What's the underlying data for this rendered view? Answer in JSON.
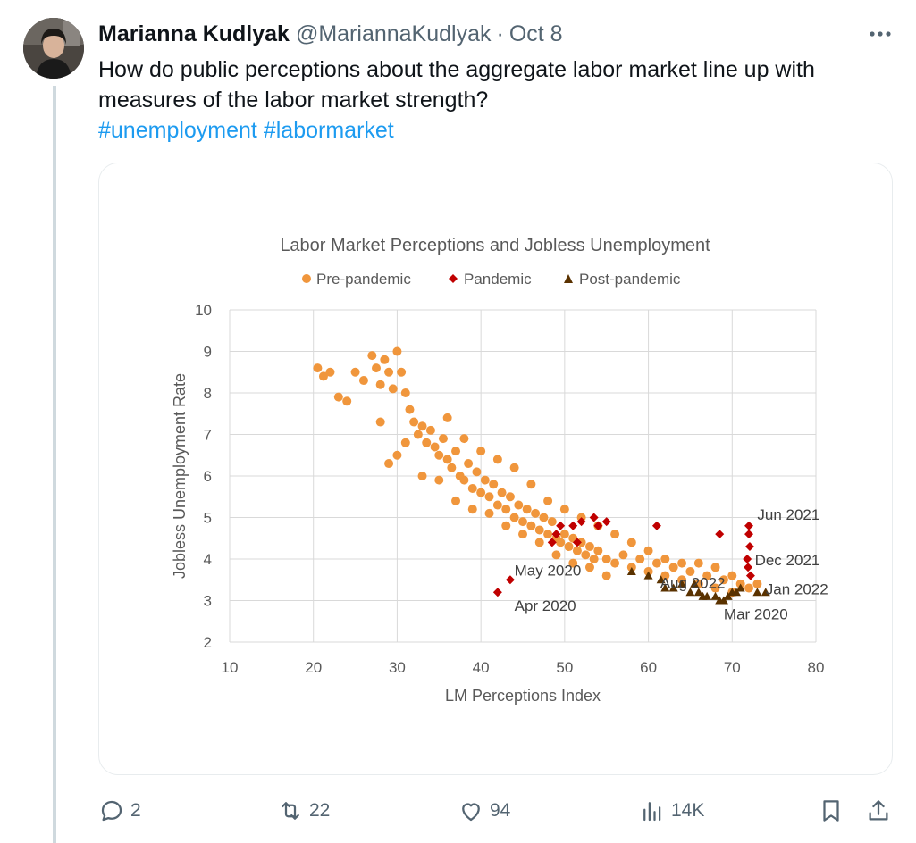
{
  "tweet": {
    "display_name": "Marianna Kudlyak",
    "handle": "@MariannaKudlyak",
    "separator": "·",
    "date": "Oct 8",
    "text_line1": "How do public perceptions about the aggregate labor market line up with",
    "text_line2": "measures of the labor market strength?",
    "hashtags": [
      "#unemployment",
      "#labormarket"
    ],
    "more_icon": "ellipsis-icon"
  },
  "actions": {
    "replies": "2",
    "retweets": "22",
    "likes": "94",
    "views": "14K",
    "icons": [
      "reply-icon",
      "retweet-icon",
      "like-icon",
      "views-icon",
      "bookmark-icon",
      "share-icon"
    ]
  },
  "colors": {
    "hashtag": "#1d9bf0",
    "secondary_text": "#536471",
    "pre_pandemic": "#f0963c",
    "pandemic": "#c00000",
    "post_pandemic": "#5a3200"
  },
  "chart_data": {
    "type": "scatter",
    "title": "Labor Market Perceptions and Jobless Unemployment",
    "xlabel": "LM Perceptions Index",
    "ylabel": "Jobless Unemployment  Rate",
    "xlim": [
      10,
      80
    ],
    "ylim": [
      2,
      10
    ],
    "xticks": [
      10,
      20,
      30,
      40,
      50,
      60,
      70,
      80
    ],
    "yticks": [
      2,
      3,
      4,
      5,
      6,
      7,
      8,
      9,
      10
    ],
    "grid": true,
    "legend_position": "top",
    "series": [
      {
        "name": "Pre-pandemic",
        "marker": "circle",
        "points": [
          [
            20.5,
            8.6
          ],
          [
            21.2,
            8.4
          ],
          [
            22,
            8.5
          ],
          [
            23,
            7.9
          ],
          [
            24,
            7.8
          ],
          [
            25,
            8.5
          ],
          [
            26,
            8.3
          ],
          [
            27,
            8.9
          ],
          [
            27.5,
            8.6
          ],
          [
            28,
            8.2
          ],
          [
            28.5,
            8.8
          ],
          [
            29,
            8.5
          ],
          [
            29.5,
            8.1
          ],
          [
            30,
            9.0
          ],
          [
            30.5,
            8.5
          ],
          [
            31,
            8.0
          ],
          [
            31.5,
            7.6
          ],
          [
            32,
            7.3
          ],
          [
            32.5,
            7.0
          ],
          [
            33,
            7.2
          ],
          [
            33.5,
            6.8
          ],
          [
            34,
            7.1
          ],
          [
            34.5,
            6.7
          ],
          [
            35,
            6.5
          ],
          [
            35.5,
            6.9
          ],
          [
            36,
            6.4
          ],
          [
            36.5,
            6.2
          ],
          [
            37,
            6.6
          ],
          [
            37.5,
            6.0
          ],
          [
            38,
            5.9
          ],
          [
            38.5,
            6.3
          ],
          [
            39,
            5.7
          ],
          [
            39.5,
            6.1
          ],
          [
            40,
            5.6
          ],
          [
            40.5,
            5.9
          ],
          [
            41,
            5.5
          ],
          [
            41.5,
            5.8
          ],
          [
            42,
            5.3
          ],
          [
            42.5,
            5.6
          ],
          [
            43,
            5.2
          ],
          [
            43.5,
            5.5
          ],
          [
            44,
            5.0
          ],
          [
            44.5,
            5.3
          ],
          [
            45,
            4.9
          ],
          [
            45.5,
            5.2
          ],
          [
            46,
            4.8
          ],
          [
            46.5,
            5.1
          ],
          [
            47,
            4.7
          ],
          [
            47.5,
            5.0
          ],
          [
            48,
            4.6
          ],
          [
            48.5,
            4.9
          ],
          [
            49,
            4.5
          ],
          [
            49.5,
            4.4
          ],
          [
            50,
            4.6
          ],
          [
            50.5,
            4.3
          ],
          [
            51,
            4.5
          ],
          [
            51.5,
            4.2
          ],
          [
            52,
            4.4
          ],
          [
            52.5,
            4.1
          ],
          [
            53,
            4.3
          ],
          [
            53.5,
            4.0
          ],
          [
            54,
            4.2
          ],
          [
            55,
            4.0
          ],
          [
            56,
            3.9
          ],
          [
            57,
            4.1
          ],
          [
            58,
            3.8
          ],
          [
            59,
            4.0
          ],
          [
            60,
            3.7
          ],
          [
            61,
            3.9
          ],
          [
            62,
            3.6
          ],
          [
            63,
            3.8
          ],
          [
            64,
            3.5
          ],
          [
            65,
            3.7
          ],
          [
            66,
            3.4
          ],
          [
            67,
            3.6
          ],
          [
            68,
            3.3
          ],
          [
            69,
            3.5
          ],
          [
            70,
            3.2
          ],
          [
            71,
            3.4
          ],
          [
            72,
            3.3
          ],
          [
            73,
            3.4
          ],
          [
            28,
            7.3
          ],
          [
            29,
            6.3
          ],
          [
            30,
            6.5
          ],
          [
            31,
            6.8
          ],
          [
            33,
            6.0
          ],
          [
            35,
            5.9
          ],
          [
            37,
            5.4
          ],
          [
            39,
            5.2
          ],
          [
            41,
            5.1
          ],
          [
            43,
            4.8
          ],
          [
            45,
            4.6
          ],
          [
            47,
            4.4
          ],
          [
            49,
            4.1
          ],
          [
            51,
            3.9
          ],
          [
            53,
            3.8
          ],
          [
            55,
            3.6
          ],
          [
            36,
            7.4
          ],
          [
            38,
            6.9
          ],
          [
            40,
            6.6
          ],
          [
            42,
            6.4
          ],
          [
            44,
            6.2
          ],
          [
            46,
            5.8
          ],
          [
            48,
            5.4
          ],
          [
            50,
            5.2
          ],
          [
            52,
            5.0
          ],
          [
            54,
            4.8
          ],
          [
            56,
            4.6
          ],
          [
            58,
            4.4
          ],
          [
            60,
            4.2
          ],
          [
            62,
            4.0
          ],
          [
            64,
            3.9
          ],
          [
            66,
            3.9
          ],
          [
            68,
            3.8
          ],
          [
            70,
            3.6
          ]
        ]
      },
      {
        "name": "Pandemic",
        "marker": "diamond",
        "points": [
          [
            42,
            3.2
          ],
          [
            43.5,
            3.5
          ],
          [
            48.5,
            4.4
          ],
          [
            49,
            4.6
          ],
          [
            49.5,
            4.8
          ],
          [
            51,
            4.8
          ],
          [
            51.5,
            4.4
          ],
          [
            52,
            4.9
          ],
          [
            53.5,
            5.0
          ],
          [
            54,
            4.8
          ],
          [
            55,
            4.9
          ],
          [
            61,
            4.8
          ],
          [
            68.5,
            4.6
          ],
          [
            72,
            4.8
          ],
          [
            72,
            4.6
          ],
          [
            72.1,
            4.3
          ],
          [
            71.8,
            4.0
          ],
          [
            71.9,
            3.8
          ],
          [
            72.2,
            3.6
          ]
        ]
      },
      {
        "name": "Post-pandemic",
        "marker": "triangle",
        "points": [
          [
            58,
            3.7
          ],
          [
            60,
            3.6
          ],
          [
            61.5,
            3.5
          ],
          [
            62,
            3.3
          ],
          [
            63,
            3.3
          ],
          [
            64,
            3.4
          ],
          [
            65,
            3.2
          ],
          [
            65.5,
            3.4
          ],
          [
            66,
            3.2
          ],
          [
            66.5,
            3.1
          ],
          [
            67,
            3.1
          ],
          [
            68,
            3.1
          ],
          [
            68.5,
            3.0
          ],
          [
            69,
            3.0
          ],
          [
            69.5,
            3.1
          ],
          [
            70,
            3.2
          ],
          [
            70.5,
            3.2
          ],
          [
            71,
            3.3
          ],
          [
            73,
            3.2
          ],
          [
            74,
            3.2
          ]
        ]
      }
    ],
    "annotations": [
      {
        "text": "Jun 2021",
        "x": 73,
        "y": 4.95
      },
      {
        "text": "Dec 2021",
        "x": 72.7,
        "y": 3.85
      },
      {
        "text": "Jan 2022",
        "x": 74,
        "y": 3.15
      },
      {
        "text": "Mar 2020",
        "x": 69,
        "y": 2.55
      },
      {
        "text": "Aug 2022",
        "x": 61.4,
        "y": 3.3
      },
      {
        "text": "May 2020",
        "x": 44,
        "y": 3.6
      },
      {
        "text": "Apr 2020",
        "x": 44,
        "y": 2.75
      }
    ]
  }
}
